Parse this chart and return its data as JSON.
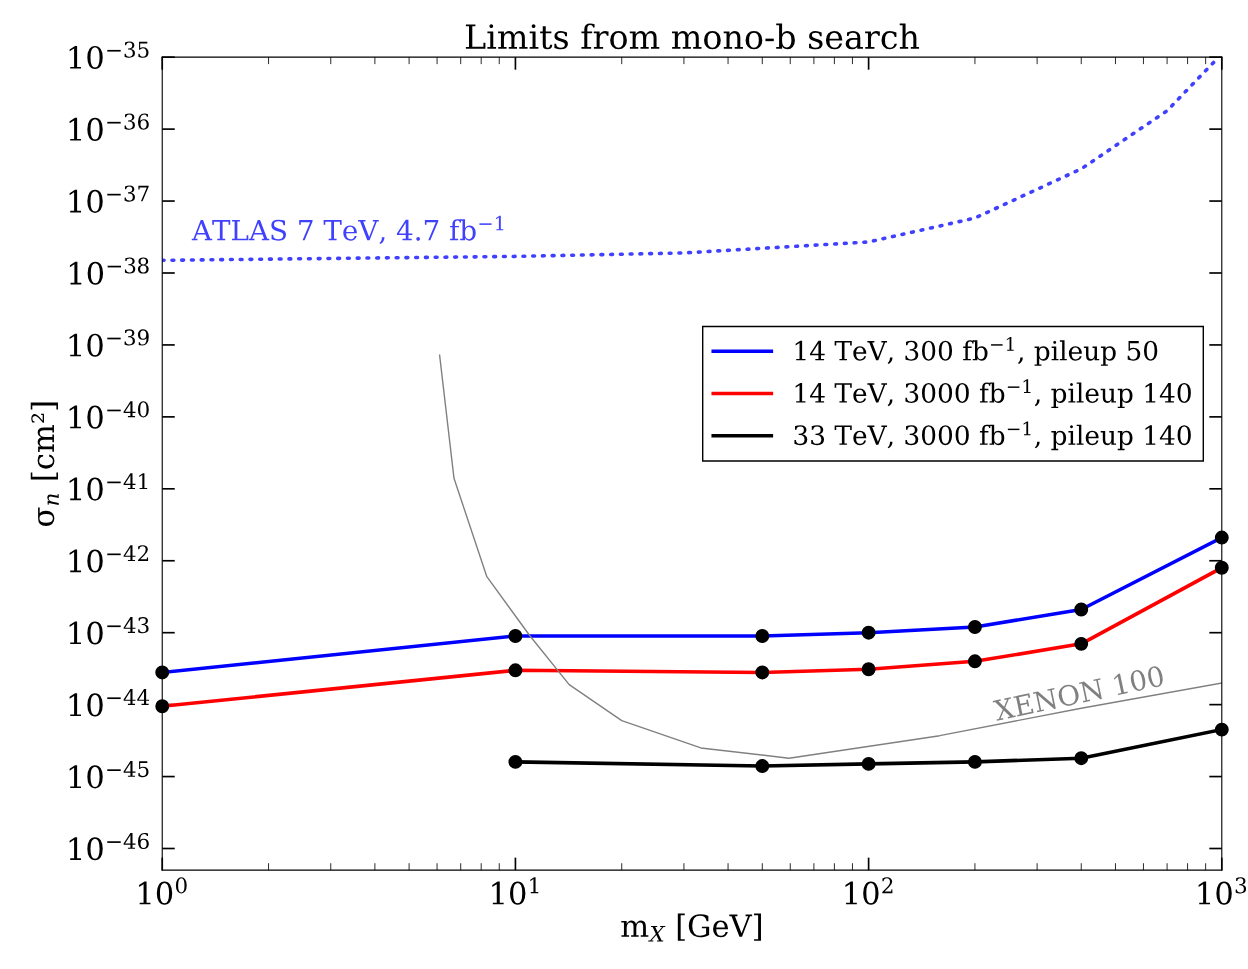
{
  "chart_data": {
    "type": "line",
    "title": "Limits from mono-b search",
    "xlabel": "m$_{X}$ [GeV]",
    "ylabel": "σ$_{n}$ [cm²]",
    "log": "xy",
    "xlim": [
      1,
      1000
    ],
    "ylim": [
      5e-47,
      1e-35
    ],
    "xticks": [
      {
        "value": 1,
        "label": "10$^{0}$"
      },
      {
        "value": 10,
        "label": "10$^{1}$"
      },
      {
        "value": 100,
        "label": "10$^{2}$"
      },
      {
        "value": 1000,
        "label": "10$^{3}$"
      }
    ],
    "yticks": [
      {
        "value": 1e-46,
        "label": "10$^{−46}$"
      },
      {
        "value": 1e-45,
        "label": "10$^{−45}$"
      },
      {
        "value": 1e-44,
        "label": "10$^{−44}$"
      },
      {
        "value": 1e-43,
        "label": "10$^{−43}$"
      },
      {
        "value": 1e-42,
        "label": "10$^{−42}$"
      },
      {
        "value": 1e-41,
        "label": "10$^{−41}$"
      },
      {
        "value": 1e-40,
        "label": "10$^{−40}$"
      },
      {
        "value": 1e-39,
        "label": "10$^{−39}$"
      },
      {
        "value": 1e-38,
        "label": "10$^{−38}$"
      },
      {
        "value": 1e-37,
        "label": "10$^{−37}$"
      },
      {
        "value": 1e-36,
        "label": "10$^{−36}$"
      },
      {
        "value": 1e-35,
        "label": "10$^{−35}$"
      }
    ],
    "grid": false,
    "legend": "right",
    "marker": "circle",
    "line_style": "solid",
    "series": [
      {
        "name": "14 TeV, 300 fb$^{−1}$, pileup 50",
        "color": "#0000ff",
        "x": [
          1,
          10,
          50,
          100,
          200,
          400,
          1000
        ],
        "values": [
          2.8e-44,
          9e-44,
          9e-44,
          1e-43,
          1.2e-43,
          2.1e-43,
          2.1e-42
        ]
      },
      {
        "name": "14 TeV, 3000 fb$^{−1}$, pileup 140",
        "color": "#ff0000",
        "x": [
          1,
          10,
          50,
          100,
          200,
          400,
          1000
        ],
        "values": [
          9.5e-45,
          3e-44,
          2.8e-44,
          3.1e-44,
          4e-44,
          7e-44,
          8e-43
        ]
      },
      {
        "name": "33 TeV, 3000 fb$^{−1}$, pileup 140",
        "color": "#000000",
        "x": [
          10,
          50,
          100,
          200,
          400,
          1000
        ],
        "values": [
          1.6e-45,
          1.4e-45,
          1.5e-45,
          1.6e-45,
          1.8e-45,
          4.5e-45
        ]
      },
      {
        "color": "#4040ff",
        "marker": "none",
        "line_style": "dotted",
        "x": [
          1,
          10,
          30,
          100,
          200,
          400,
          700,
          980
        ],
        "values": [
          1.5e-38,
          1.7e-38,
          1.9e-38,
          2.7e-38,
          5.8e-38,
          2.8e-37,
          1.8e-36,
          1e-35
        ]
      },
      {
        "color": "#808080",
        "marker": "none",
        "x": [
          6.1,
          6.7,
          8.3,
          11,
          14.2,
          20,
          33.5,
          59.5,
          159,
          400,
          1000
        ],
        "values": [
          7.2e-40,
          1.4e-41,
          6e-43,
          9e-44,
          1.9e-44,
          6e-45,
          2.5e-45,
          1.8e-45,
          3.7e-45,
          8.9e-45,
          2e-44
        ]
      }
    ],
    "annotations": [
      "ATLAS 7 TeV, 4.7 fb$^{−1}$",
      "XENON 100"
    ]
  }
}
